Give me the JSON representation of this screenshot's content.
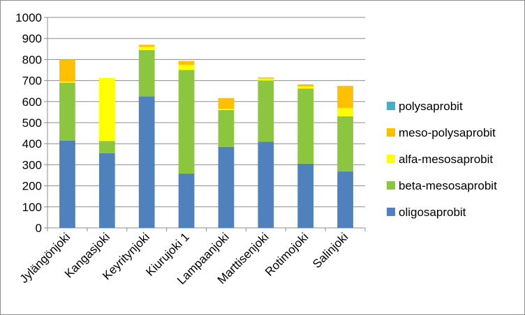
{
  "chart_data": {
    "type": "bar",
    "stacked": true,
    "categories": [
      "Jylängönjoki",
      "Kangasjoki",
      "Keyritynjoki",
      "Kiurujoki 1",
      "Lampaanjoki",
      "Marttisenjoki",
      "Rotimojoki",
      "Salinjoki"
    ],
    "series": [
      {
        "name": "oligosaprobit",
        "color": "#4f81bd",
        "values": [
          415,
          355,
          625,
          258,
          385,
          410,
          305,
          268
        ]
      },
      {
        "name": "beta-mesosaprobit",
        "color": "#8cc63f",
        "values": [
          275,
          58,
          220,
          492,
          175,
          290,
          357,
          262
        ]
      },
      {
        "name": "alfa-mesosaprobit",
        "color": "#ffff00",
        "values": [
          5,
          300,
          15,
          25,
          5,
          10,
          10,
          40
        ]
      },
      {
        "name": "meso-polysaprobit",
        "color": "#ffc000",
        "values": [
          105,
          0,
          10,
          18,
          52,
          5,
          10,
          105
        ]
      },
      {
        "name": "polysaprobit",
        "color": "#4bacc6",
        "values": [
          0,
          0,
          0,
          0,
          0,
          0,
          0,
          0
        ]
      }
    ],
    "legend_order": [
      "polysaprobit",
      "meso-polysaprobit",
      "alfa-mesosaprobit",
      "beta-mesosaprobit",
      "oligosaprobit"
    ],
    "yticks": [
      0,
      100,
      200,
      300,
      400,
      500,
      600,
      700,
      800,
      900,
      1000
    ],
    "ylim": [
      0,
      1000
    ],
    "grid": true,
    "legend_position": "right",
    "title": "",
    "xlabel": "",
    "ylabel": ""
  }
}
